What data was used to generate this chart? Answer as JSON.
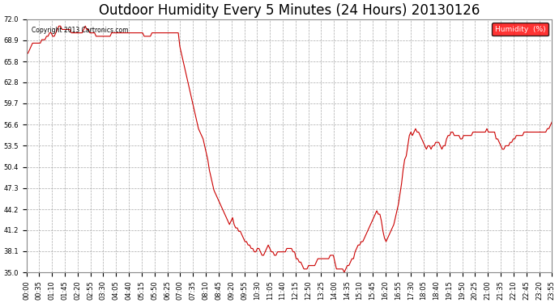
{
  "title": "Outdoor Humidity Every 5 Minutes (24 Hours) 20130126",
  "copyright_text": "Copyright 2013 Cartronics.com",
  "legend_label": "Humidity  (%)",
  "legend_bg": "#FF0000",
  "legend_text_color": "#FFFFFF",
  "line_color": "#CC0000",
  "background_color": "#FFFFFF",
  "grid_color": "#AAAAAA",
  "ylim": [
    35.0,
    72.0
  ],
  "yticks": [
    35.0,
    38.1,
    41.2,
    44.2,
    47.3,
    50.4,
    53.5,
    56.6,
    59.7,
    62.8,
    65.8,
    68.9,
    72.0
  ],
  "title_fontsize": 12,
  "tick_fontsize": 6,
  "humidity_values": [
    67.0,
    67.0,
    67.5,
    68.0,
    68.5,
    68.5,
    68.5,
    68.5,
    68.5,
    68.5,
    69.0,
    69.0,
    69.0,
    69.5,
    69.5,
    70.0,
    70.0,
    69.5,
    69.5,
    70.0,
    70.5,
    71.0,
    71.0,
    70.5,
    70.5,
    70.5,
    70.5,
    70.5,
    70.5,
    70.0,
    70.0,
    70.0,
    70.0,
    70.0,
    70.0,
    70.0,
    70.0,
    70.5,
    71.0,
    70.5,
    70.5,
    70.0,
    70.0,
    70.0,
    70.0,
    69.5,
    69.5,
    69.5,
    69.5,
    69.5,
    69.5,
    69.5,
    69.5,
    69.5,
    69.5,
    70.0,
    70.0,
    70.0,
    70.0,
    70.0,
    70.0,
    70.0,
    70.0,
    70.0,
    70.0,
    70.0,
    70.0,
    70.0,
    70.0,
    70.0,
    70.0,
    70.0,
    70.0,
    70.0,
    70.0,
    70.0,
    69.5,
    69.5,
    69.5,
    69.5,
    69.5,
    70.0,
    70.0,
    70.0,
    70.0,
    70.0,
    70.0,
    70.0,
    70.0,
    70.0,
    70.0,
    70.0,
    70.0,
    70.0,
    70.0,
    70.0,
    70.0,
    70.0,
    70.0,
    68.0,
    67.0,
    66.0,
    65.0,
    64.0,
    63.0,
    62.0,
    61.0,
    60.0,
    59.0,
    58.0,
    57.0,
    56.0,
    55.5,
    55.0,
    54.5,
    53.5,
    52.5,
    51.5,
    50.0,
    49.0,
    48.0,
    47.0,
    46.5,
    46.0,
    45.5,
    45.0,
    44.5,
    44.0,
    43.5,
    43.0,
    42.5,
    42.0,
    42.5,
    43.0,
    42.0,
    41.5,
    41.5,
    41.0,
    41.0,
    40.5,
    40.0,
    39.5,
    39.5,
    39.0,
    39.0,
    38.5,
    38.5,
    38.0,
    38.0,
    38.5,
    38.5,
    38.0,
    37.5,
    37.5,
    38.0,
    38.5,
    39.0,
    38.5,
    38.0,
    38.0,
    37.5,
    37.5,
    38.0,
    38.0,
    38.0,
    38.0,
    38.0,
    38.0,
    38.5,
    38.5,
    38.5,
    38.5,
    38.0,
    38.0,
    37.0,
    37.0,
    36.5,
    36.5,
    36.0,
    35.5,
    35.5,
    35.5,
    36.0,
    36.0,
    36.0,
    36.0,
    36.0,
    36.5,
    37.0,
    37.0,
    37.0,
    37.0,
    37.0,
    37.0,
    37.0,
    37.0,
    37.5,
    37.5,
    37.5,
    36.5,
    35.5,
    35.5,
    35.5,
    35.5,
    35.5,
    35.0,
    35.5,
    36.0,
    36.0,
    36.5,
    37.0,
    37.0,
    38.0,
    38.5,
    39.0,
    39.0,
    39.5,
    39.5,
    40.0,
    40.5,
    41.0,
    41.5,
    42.0,
    42.5,
    43.0,
    43.5,
    44.0,
    43.5,
    43.5,
    42.5,
    41.0,
    40.0,
    39.5,
    40.0,
    40.5,
    41.0,
    41.5,
    42.0,
    43.0,
    44.0,
    45.0,
    46.5,
    48.0,
    50.0,
    51.5,
    52.0,
    53.5,
    55.0,
    55.5,
    55.0,
    55.5,
    56.0,
    55.5,
    55.5,
    55.0,
    54.5,
    54.0,
    53.5,
    53.0,
    53.5,
    53.5,
    53.0,
    53.5,
    53.5,
    54.0,
    54.0,
    54.0,
    53.5,
    53.0,
    53.5,
    53.5,
    54.5,
    55.0,
    55.0,
    55.5,
    55.5,
    55.0,
    55.0,
    55.0,
    55.0,
    54.5,
    54.5,
    55.0,
    55.0,
    55.0,
    55.0,
    55.0,
    55.0,
    55.5,
    55.5,
    55.5,
    55.5,
    55.5,
    55.5,
    55.5,
    55.5,
    55.5,
    56.0,
    55.5,
    55.5,
    55.5,
    55.5,
    55.5,
    54.5,
    54.5,
    54.0,
    53.5,
    53.0,
    53.0,
    53.5,
    53.5,
    53.5,
    54.0,
    54.0,
    54.5,
    54.5,
    55.0,
    55.0,
    55.0,
    55.0,
    55.0,
    55.5,
    55.5,
    55.5,
    55.5,
    55.5,
    55.5,
    55.5,
    55.5,
    55.5,
    55.5,
    55.5,
    55.5,
    55.5,
    55.5,
    55.5,
    56.0,
    56.0,
    56.5,
    57.0
  ],
  "xtick_labels": [
    "00:00",
    "00:35",
    "01:10",
    "01:45",
    "02:20",
    "02:55",
    "03:30",
    "04:05",
    "04:40",
    "05:15",
    "05:50",
    "06:25",
    "07:00",
    "07:35",
    "08:10",
    "08:45",
    "09:20",
    "09:55",
    "10:30",
    "11:05",
    "11:40",
    "12:15",
    "12:50",
    "13:25",
    "14:00",
    "14:35",
    "15:10",
    "15:45",
    "16:20",
    "16:55",
    "17:30",
    "18:05",
    "18:40",
    "19:15",
    "19:50",
    "20:25",
    "21:00",
    "21:35",
    "22:10",
    "22:45",
    "23:20",
    "23:55"
  ]
}
